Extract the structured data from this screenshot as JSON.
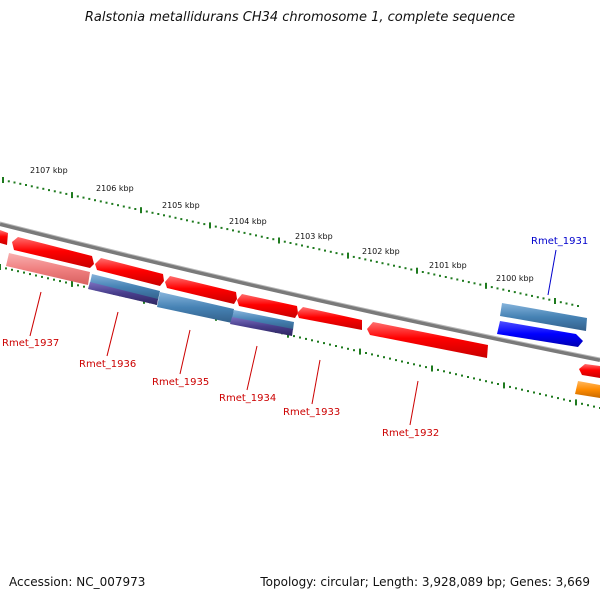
{
  "title": "Ralstonia metallidurans CH34 chromosome 1, complete sequence",
  "accession": "Accession: NC_007973",
  "summary": "Topology: circular; Length: 3,928,089 bp; Genes: 3,669",
  "scale_labels": [
    "2107 kbp",
    "2106 kbp",
    "2105 kbp",
    "2104 kbp",
    "2103 kbp",
    "2102 kbp",
    "2101 kbp",
    "2100 kbp"
  ],
  "gene_labels": [
    "Rmet_1937",
    "Rmet_1936",
    "Rmet_1935",
    "Rmet_1934",
    "Rmet_1933",
    "Rmet_1932",
    "Rmet_1931"
  ],
  "colors": {
    "backbone": "#7a7a7a",
    "tick": "#1e7a1e",
    "cds": "#ff0000",
    "cds_light": "#f08080",
    "steelblue": "#4682b4",
    "darkslate": "#483d8b",
    "blue": "#0000ff",
    "orange": "#ff8c00",
    "label_red": "#cc0000",
    "label_blue": "#0000cc"
  }
}
